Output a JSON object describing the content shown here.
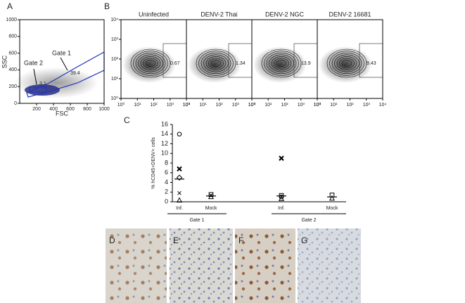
{
  "panel_a": {
    "label": "A",
    "xlabel": "FSC",
    "ylabel": "SSC",
    "xlim": [
      0,
      1000
    ],
    "ylim": [
      0,
      1000
    ],
    "xticks": [
      200,
      400,
      600,
      800,
      1000
    ],
    "yticks": [
      0,
      200,
      400,
      600,
      800,
      1000
    ],
    "gates": [
      {
        "name": "Gate 1",
        "value": "39.4"
      },
      {
        "name": "Gate 2",
        "value": "3.1"
      }
    ]
  },
  "panel_b": {
    "label": "B",
    "titles": [
      "Uninfected",
      "DENV-2  Thai",
      "DENV-2  NGC",
      "DENV-2  16681"
    ],
    "gate_values": [
      "0.67",
      "1.34",
      "13.9",
      "9.43"
    ],
    "xticks": [
      {
        "value": 0,
        "label": "10⁰"
      },
      {
        "value": 1,
        "label": "10¹"
      },
      {
        "value": 2,
        "label": "10²"
      },
      {
        "value": 3,
        "label": "10³"
      },
      {
        "value": 4,
        "label": "10⁴"
      }
    ],
    "yticks": [
      {
        "value": 0,
        "label": "10⁰"
      },
      {
        "value": 1,
        "label": "10¹"
      },
      {
        "value": 2,
        "label": "10²"
      },
      {
        "value": 3,
        "label": "10³"
      },
      {
        "value": 4,
        "label": "10⁴"
      }
    ]
  },
  "chart_data": {
    "type": "dot",
    "label": "C",
    "ylabel": "% hCD45+DENV+ cells",
    "categories": [
      "Inf.",
      "Mock",
      "Inf.",
      "Mock"
    ],
    "groups": [
      "Gate 1",
      "Gate 2"
    ],
    "ylim": [
      0,
      16
    ],
    "yticks": [
      0,
      2,
      4,
      6,
      8,
      10,
      12,
      14,
      16
    ],
    "series": [
      {
        "marker": "circle",
        "values": [
          14,
          null,
          1.0,
          null
        ]
      },
      {
        "marker": "bold-cross",
        "values": [
          6.8,
          null,
          9,
          null
        ]
      },
      {
        "marker": "cross",
        "values": [
          1.8,
          1.3,
          null,
          null
        ]
      },
      {
        "marker": "diamond",
        "values": [
          5,
          null,
          null,
          null
        ]
      },
      {
        "marker": "triangle",
        "values": [
          0.3,
          1.0,
          0.6,
          0.7
        ]
      },
      {
        "marker": "square",
        "values": [
          null,
          1.5,
          1.3,
          1.4
        ]
      },
      {
        "marker": "mean",
        "values": [
          4.7,
          1.2,
          1.2,
          1.0
        ]
      }
    ]
  },
  "panel_images": {
    "labels": [
      "D",
      "E",
      "F",
      "G"
    ]
  }
}
